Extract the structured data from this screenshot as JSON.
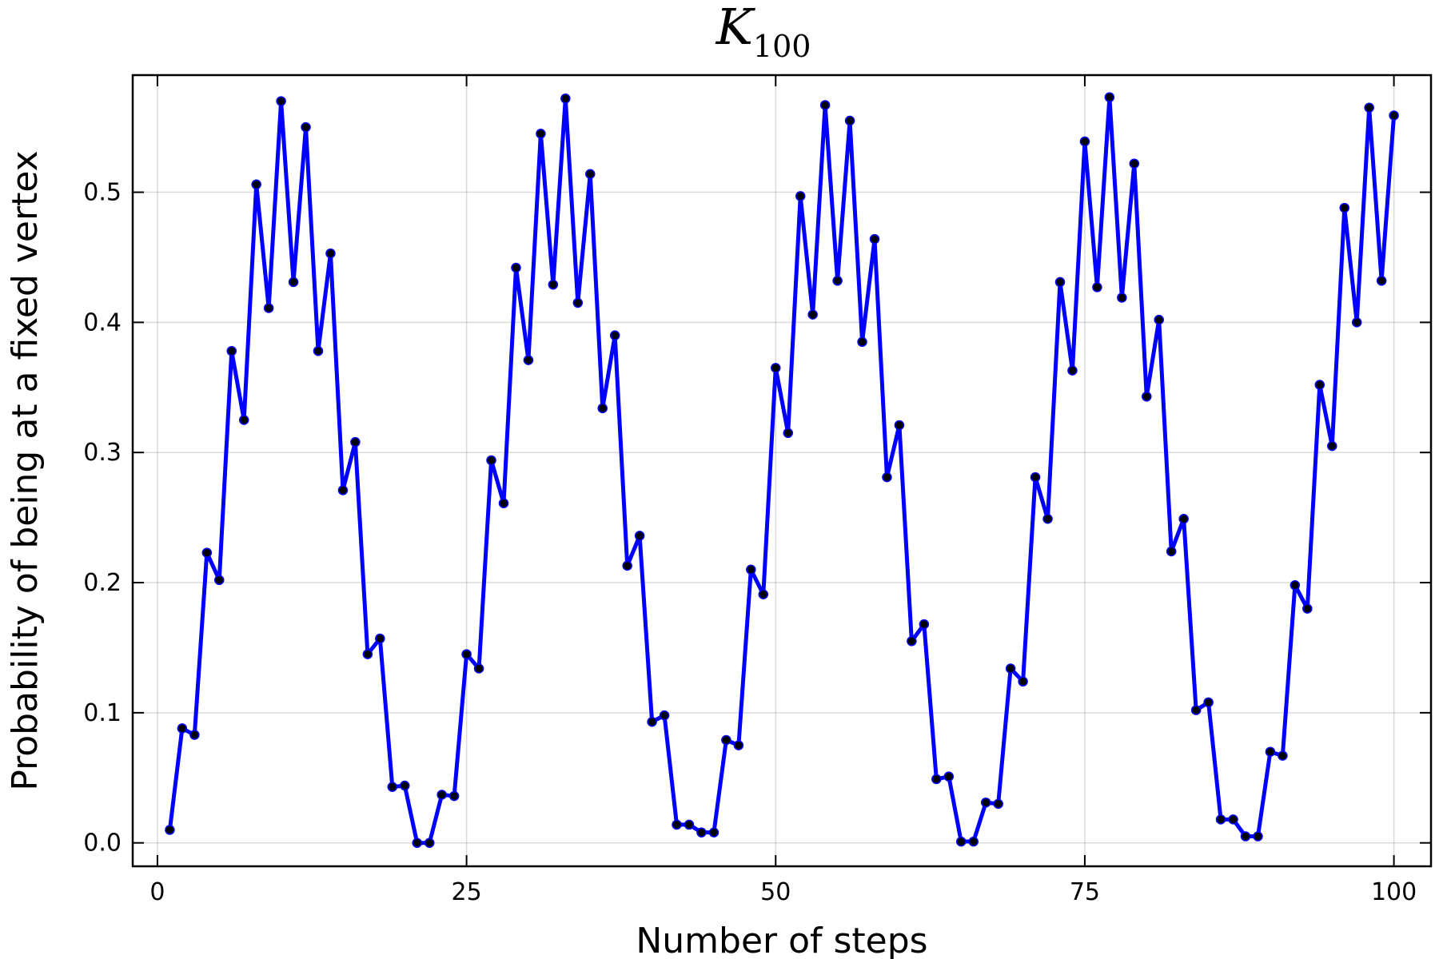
{
  "chart_data": {
    "type": "line",
    "title": "K",
    "title_subscript": "100",
    "xlabel": "Number of steps",
    "ylabel": "Probability of being at a fixed vertex",
    "xlim": [
      -2,
      103
    ],
    "ylim": [
      -0.018,
      0.59
    ],
    "xticks": [
      0,
      25,
      50,
      75,
      100
    ],
    "xtick_labels": [
      "0",
      "25",
      "50",
      "75",
      "100"
    ],
    "yticks": [
      0.0,
      0.1,
      0.2,
      0.3,
      0.4,
      0.5
    ],
    "ytick_labels": [
      "0.0",
      "0.1",
      "0.2",
      "0.3",
      "0.4",
      "0.5"
    ],
    "grid": true,
    "legend": false,
    "line_color": "#0000ff",
    "marker_color": "#000000",
    "series": [
      {
        "x": [
          1,
          2,
          3,
          4,
          5,
          6,
          7,
          8,
          9,
          10,
          11,
          12,
          13,
          14,
          15,
          16,
          17,
          18,
          19,
          20,
          21,
          22,
          23,
          24,
          25,
          26,
          27,
          28,
          29,
          30,
          31,
          32,
          33,
          34,
          35,
          36,
          37,
          38,
          39,
          40,
          41,
          42,
          43,
          44,
          45,
          46,
          47,
          48,
          49,
          50,
          51,
          52,
          53,
          54,
          55,
          56,
          57,
          58,
          59,
          60,
          61,
          62,
          63,
          64,
          65,
          66,
          67,
          68,
          69,
          70,
          71,
          72,
          73,
          74,
          75,
          76,
          77,
          78,
          79,
          80,
          81,
          82,
          83,
          84,
          85,
          86,
          87,
          88,
          89,
          90,
          91,
          92,
          93,
          94,
          95,
          96,
          97,
          98,
          99,
          100
        ],
        "y": [
          0.01,
          0.088,
          0.083,
          0.223,
          0.202,
          0.378,
          0.325,
          0.506,
          0.411,
          0.57,
          0.431,
          0.55,
          0.378,
          0.453,
          0.271,
          0.308,
          0.145,
          0.157,
          0.043,
          0.044,
          0.0,
          0.0,
          0.037,
          0.036,
          0.145,
          0.134,
          0.294,
          0.261,
          0.442,
          0.371,
          0.545,
          0.429,
          0.572,
          0.415,
          0.514,
          0.334,
          0.39,
          0.213,
          0.236,
          0.093,
          0.098,
          0.014,
          0.014,
          0.008,
          0.008,
          0.079,
          0.075,
          0.21,
          0.191,
          0.365,
          0.315,
          0.497,
          0.406,
          0.567,
          0.432,
          0.555,
          0.385,
          0.464,
          0.281,
          0.321,
          0.155,
          0.168,
          0.049,
          0.051,
          0.001,
          0.001,
          0.031,
          0.03,
          0.134,
          0.124,
          0.281,
          0.249,
          0.431,
          0.363,
          0.539,
          0.427,
          0.573,
          0.419,
          0.522,
          0.343,
          0.402,
          0.224,
          0.249,
          0.102,
          0.108,
          0.018,
          0.018,
          0.005,
          0.005,
          0.07,
          0.067,
          0.198,
          0.18,
          0.352,
          0.305,
          0.488,
          0.4,
          0.565,
          0.432,
          0.559
        ]
      }
    ]
  }
}
